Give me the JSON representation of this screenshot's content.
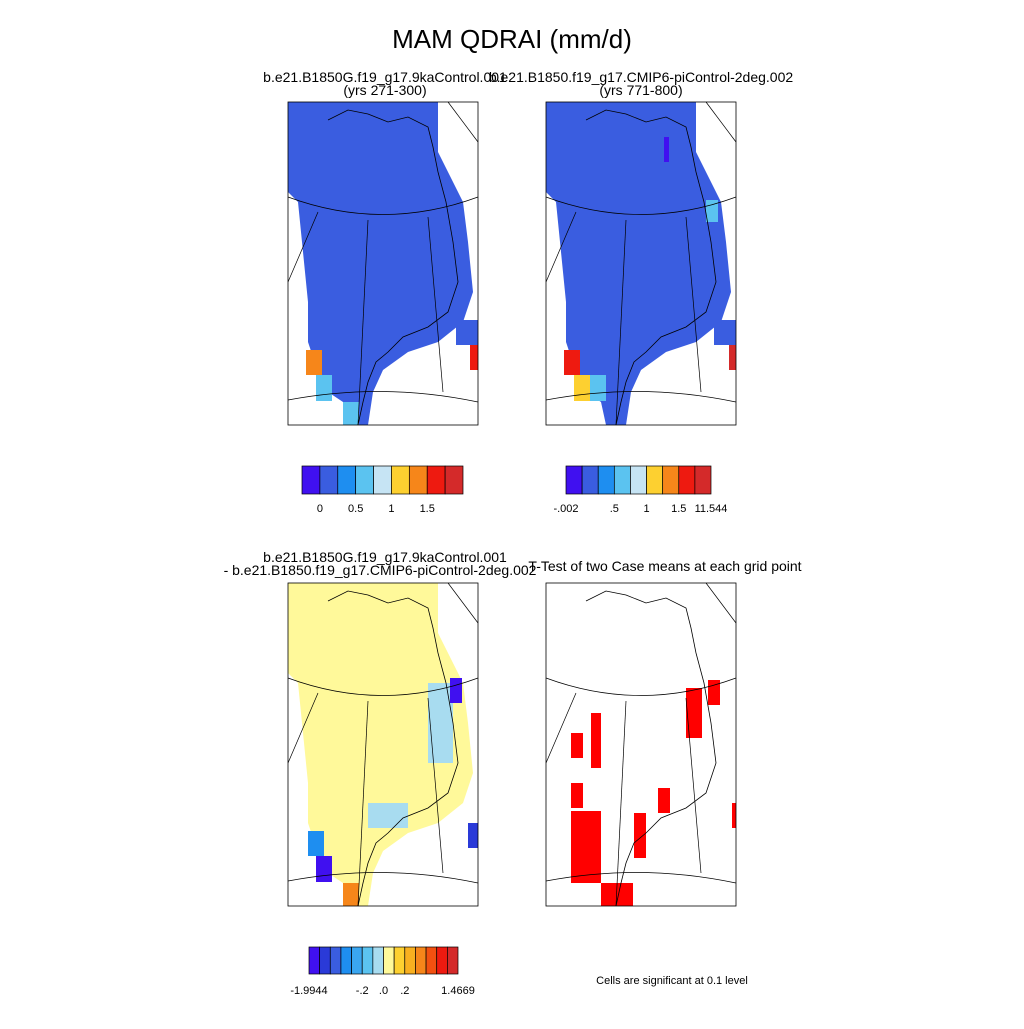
{
  "title": "MAM QDRAI (mm/d)",
  "panels": [
    {
      "title_lines": [
        "b.e21.B1850G.f19_g17.9kaControl.001",
        "(yrs 271-300)"
      ]
    },
    {
      "title_lines": [
        "b.e21.B1850.f19_g17.CMIP6-piControl-2deg.002",
        "(yrs 771-800)"
      ]
    },
    {
      "title_lines": [
        "b.e21.B1850G.f19_g17.9kaControl.001",
        "- b.e21.B1850.f19_g17.CMIP6-piControl-2deg.002"
      ]
    },
    {
      "title_lines": [
        "T-Test of two Case means at each grid point"
      ]
    }
  ],
  "colorbars": [
    {
      "colors": [
        "#4010f0",
        "#3a5de0",
        "#1e8ef0",
        "#5bc3f0",
        "#c6e4f4",
        "#fdd030",
        "#f6861a",
        "#ee1a10",
        "#d42a2a"
      ],
      "labels": [
        "0",
        "0.5",
        "1",
        "1.5"
      ]
    },
    {
      "colors": [
        "#4010f0",
        "#3a5de0",
        "#1e8ef0",
        "#5bc3f0",
        "#c6e4f4",
        "#fdd030",
        "#f6861a",
        "#ee1a10",
        "#d42a2a"
      ],
      "labels": [
        "-.002",
        ".5",
        "1",
        "1.5",
        "11.544"
      ]
    },
    {
      "colors": [
        "#4010f0",
        "#2a3ad8",
        "#3a5de0",
        "#1e8ef0",
        "#3aa6f0",
        "#5bc3f0",
        "#a8dcf0",
        "#fff99a",
        "#fdd030",
        "#f8b020",
        "#f6861a",
        "#f25010",
        "#ee1a10",
        "#d42a2a"
      ],
      "labels": [
        "-1.9944",
        "-.2",
        ".0",
        ".2",
        "1.4669"
      ]
    }
  ],
  "note": "Cells are significant at 0.1 level"
}
